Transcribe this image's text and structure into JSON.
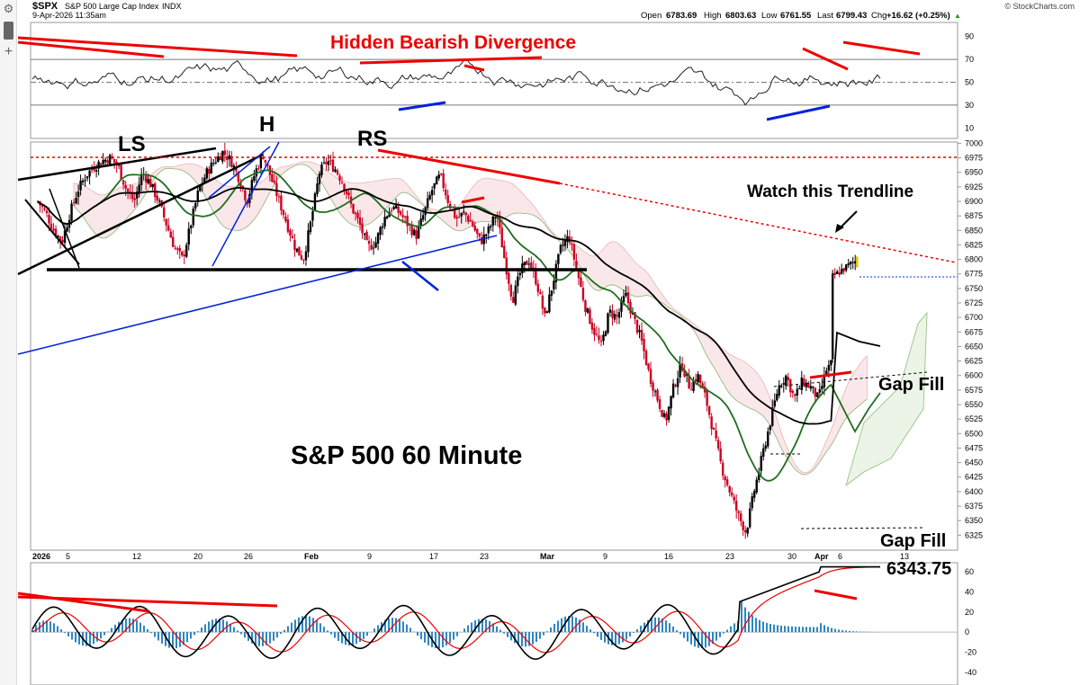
{
  "header": {
    "symbol": "$SPX",
    "name": "S&P 500 Large Cap Index",
    "exchange": "INDX",
    "date": "9-Apr-2026 11:35am",
    "open_label": "Open",
    "open": "6783.69",
    "high_label": "High",
    "high": "6803.63",
    "low_label": "Low",
    "low": "6761.55",
    "last_label": "Last",
    "last": "6799.43",
    "chg_label": "Chg",
    "chg": "+16.62 (+0.25%)",
    "up_arrow": "▲",
    "credit": "© StockCharts.com"
  },
  "toolbar": {
    "settings_icon": "gear-icon",
    "add_icon": "plus-icon",
    "plus": "+",
    "gear": "⚙"
  },
  "annotations": {
    "divergence": "Hidden Bearish Divergence",
    "ls": "LS",
    "h": "H",
    "rs": "RS",
    "watch": "Watch this Trendline",
    "gap_fill_1": "Gap Fill",
    "gap_fill_2": "Gap Fill",
    "gap_value": "6343.75",
    "title": "S&P 500 60 Minute"
  },
  "colors": {
    "up": "#000000",
    "down": "#cc0022",
    "sma_green": "#1e6e1e",
    "sma_black": "#000000",
    "trend_red": "#ee0000",
    "trend_blue": "#0000dd",
    "macd_hist": "#2e86c1"
  },
  "chart_data": {
    "type": "line",
    "title": "S&P 500 60 Minute",
    "x_labels": [
      "2026",
      "5",
      "12",
      "20",
      "26",
      "Feb",
      "9",
      "17",
      "23",
      "Mar",
      "9",
      "16",
      "23",
      "30",
      "Apr",
      "6",
      "13"
    ],
    "price_ticks": [
      6325,
      6350,
      6375,
      6400,
      6425,
      6450,
      6475,
      6500,
      6525,
      6550,
      6575,
      6600,
      6625,
      6650,
      6675,
      6700,
      6725,
      6750,
      6775,
      6800,
      6825,
      6850,
      6875,
      6900,
      6925,
      6950,
      6975,
      7000
    ],
    "price_range": [
      6310,
      7010
    ],
    "rsi_ticks": [
      10,
      30,
      50,
      70,
      90
    ],
    "rsi_range": [
      0,
      100
    ],
    "macd_ticks": [
      -40,
      -20,
      0,
      20,
      40,
      60
    ],
    "macd_range": [
      -50,
      70
    ],
    "price_series": [
      {
        "x": 0,
        "y": 6900
      },
      {
        "x": 0.5,
        "y": 6880
      },
      {
        "x": 1,
        "y": 6850
      },
      {
        "x": 1.5,
        "y": 6830
      },
      {
        "x": 2,
        "y": 6880
      },
      {
        "x": 2.5,
        "y": 6920
      },
      {
        "x": 3,
        "y": 6945
      },
      {
        "x": 3.5,
        "y": 6960
      },
      {
        "x": 4,
        "y": 6970
      },
      {
        "x": 4.5,
        "y": 6975
      },
      {
        "x": 5,
        "y": 6960
      },
      {
        "x": 5.5,
        "y": 6920
      },
      {
        "x": 6,
        "y": 6900
      },
      {
        "x": 6.5,
        "y": 6950
      },
      {
        "x": 7,
        "y": 6930
      },
      {
        "x": 7.5,
        "y": 6900
      },
      {
        "x": 8,
        "y": 6860
      },
      {
        "x": 8.5,
        "y": 6820
      },
      {
        "x": 9,
        "y": 6800
      },
      {
        "x": 9.5,
        "y": 6860
      },
      {
        "x": 10,
        "y": 6920
      },
      {
        "x": 10.5,
        "y": 6950
      },
      {
        "x": 11,
        "y": 6970
      },
      {
        "x": 11.5,
        "y": 6985
      },
      {
        "x": 12,
        "y": 6970
      },
      {
        "x": 12.5,
        "y": 6940
      },
      {
        "x": 13,
        "y": 6900
      },
      {
        "x": 13.5,
        "y": 6950
      },
      {
        "x": 14,
        "y": 6980
      },
      {
        "x": 14.5,
        "y": 6940
      },
      {
        "x": 15,
        "y": 6900
      },
      {
        "x": 15.5,
        "y": 6860
      },
      {
        "x": 16,
        "y": 6820
      },
      {
        "x": 16.5,
        "y": 6800
      },
      {
        "x": 17,
        "y": 6870
      },
      {
        "x": 17.5,
        "y": 6950
      },
      {
        "x": 18,
        "y": 6970
      },
      {
        "x": 18.5,
        "y": 6955
      },
      {
        "x": 19,
        "y": 6930
      },
      {
        "x": 19.5,
        "y": 6890
      },
      {
        "x": 20,
        "y": 6860
      },
      {
        "x": 20.5,
        "y": 6820
      },
      {
        "x": 21,
        "y": 6830
      },
      {
        "x": 21.5,
        "y": 6870
      },
      {
        "x": 22,
        "y": 6890
      },
      {
        "x": 22.5,
        "y": 6880
      },
      {
        "x": 23,
        "y": 6860
      },
      {
        "x": 23.5,
        "y": 6840
      },
      {
        "x": 24,
        "y": 6880
      },
      {
        "x": 24.5,
        "y": 6920
      },
      {
        "x": 25,
        "y": 6945
      },
      {
        "x": 25.5,
        "y": 6900
      },
      {
        "x": 26,
        "y": 6870
      },
      {
        "x": 26.5,
        "y": 6880
      },
      {
        "x": 27,
        "y": 6860
      },
      {
        "x": 27.5,
        "y": 6830
      },
      {
        "x": 28,
        "y": 6850
      },
      {
        "x": 28.5,
        "y": 6880
      },
      {
        "x": 29,
        "y": 6800
      },
      {
        "x": 29.5,
        "y": 6730
      },
      {
        "x": 30,
        "y": 6780
      },
      {
        "x": 30.5,
        "y": 6800
      },
      {
        "x": 31,
        "y": 6760
      },
      {
        "x": 31.5,
        "y": 6700
      },
      {
        "x": 32,
        "y": 6760
      },
      {
        "x": 32.5,
        "y": 6820
      },
      {
        "x": 33,
        "y": 6840
      },
      {
        "x": 33.5,
        "y": 6780
      },
      {
        "x": 34,
        "y": 6720
      },
      {
        "x": 34.5,
        "y": 6680
      },
      {
        "x": 35,
        "y": 6650
      },
      {
        "x": 35.5,
        "y": 6710
      },
      {
        "x": 36,
        "y": 6700
      },
      {
        "x": 36.5,
        "y": 6740
      },
      {
        "x": 37,
        "y": 6700
      },
      {
        "x": 37.5,
        "y": 6660
      },
      {
        "x": 38,
        "y": 6600
      },
      {
        "x": 38.5,
        "y": 6560
      },
      {
        "x": 39,
        "y": 6520
      },
      {
        "x": 39.5,
        "y": 6580
      },
      {
        "x": 40,
        "y": 6620
      },
      {
        "x": 40.5,
        "y": 6580
      },
      {
        "x": 41,
        "y": 6600
      },
      {
        "x": 41.5,
        "y": 6560
      },
      {
        "x": 42,
        "y": 6500
      },
      {
        "x": 42.5,
        "y": 6440
      },
      {
        "x": 43,
        "y": 6400
      },
      {
        "x": 43.5,
        "y": 6360
      },
      {
        "x": 44,
        "y": 6330
      },
      {
        "x": 44.5,
        "y": 6400
      },
      {
        "x": 45,
        "y": 6460
      },
      {
        "x": 45.5,
        "y": 6520
      },
      {
        "x": 46,
        "y": 6580
      },
      {
        "x": 46.5,
        "y": 6600
      },
      {
        "x": 47,
        "y": 6560
      },
      {
        "x": 47.5,
        "y": 6590
      },
      {
        "x": 48,
        "y": 6580
      },
      {
        "x": 48.5,
        "y": 6560
      },
      {
        "x": 49,
        "y": 6610
      },
      {
        "x": 49.3,
        "y": 6620
      },
      {
        "x": 50.5,
        "y": 6770
      },
      {
        "x": 51,
        "y": 6780
      },
      {
        "x": 51.5,
        "y": 6790
      },
      {
        "x": 52,
        "y": 6799
      }
    ]
  }
}
